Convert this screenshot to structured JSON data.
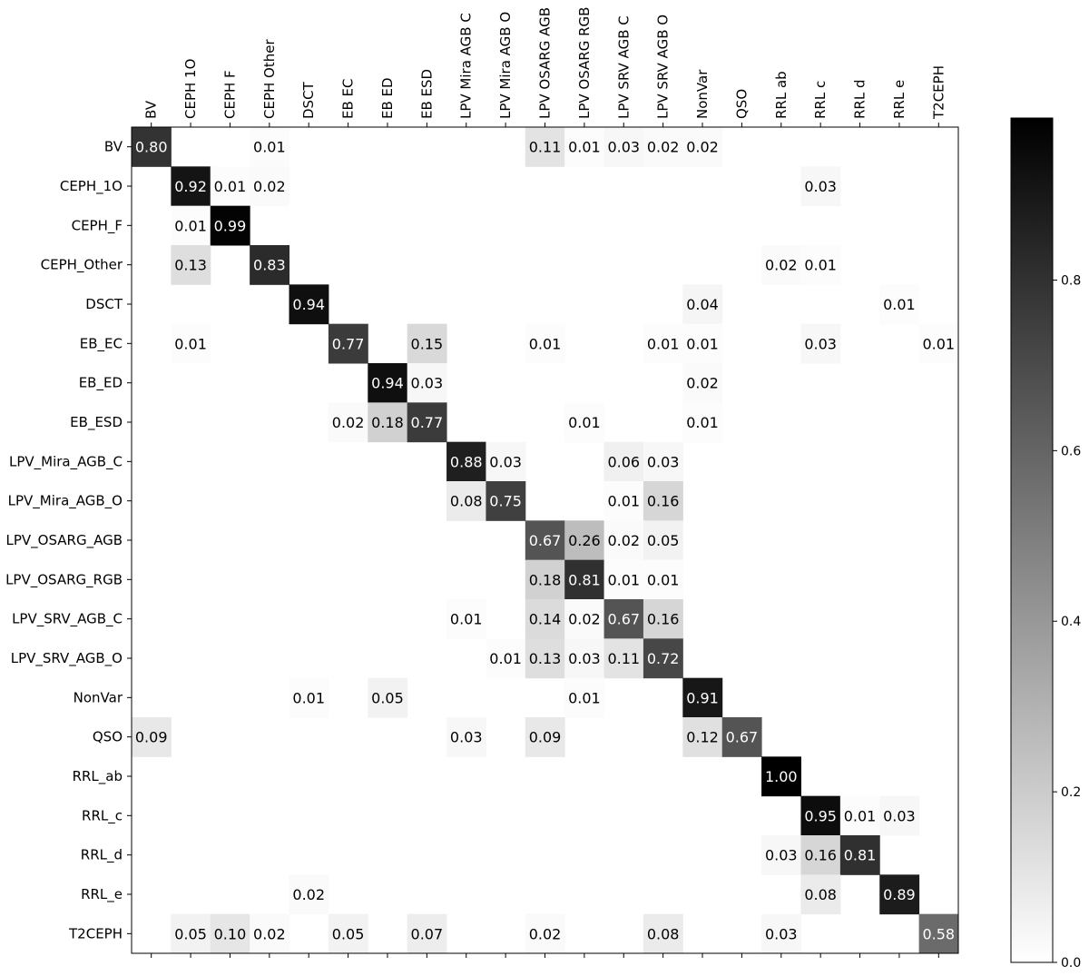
{
  "chart_data": {
    "type": "heatmap",
    "title": "",
    "xlabel": "",
    "ylabel": "",
    "x_categories": [
      "BV",
      "CEPH 1O",
      "CEPH F",
      "CEPH Other",
      "DSCT",
      "EB EC",
      "EB ED",
      "EB ESD",
      "LPV Mira AGB C",
      "LPV Mira AGB O",
      "LPV OSARG AGB",
      "LPV OSARG RGB",
      "LPV SRV AGB C",
      "LPV SRV AGB O",
      "NonVar",
      "QSO",
      "RRL ab",
      "RRL c",
      "RRL d",
      "RRL e",
      "T2CEPH"
    ],
    "y_categories": [
      "BV",
      "CEPH_1O",
      "CEPH_F",
      "CEPH_Other",
      "DSCT",
      "EB_EC",
      "EB_ED",
      "EB_ESD",
      "LPV_Mira_AGB_C",
      "LPV_Mira_AGB_O",
      "LPV_OSARG_AGB",
      "LPV_OSARG_RGB",
      "LPV_SRV_AGB_C",
      "LPV_SRV_AGB_O",
      "NonVar",
      "QSO",
      "RRL_ab",
      "RRL_c",
      "RRL_d",
      "RRL_e",
      "T2CEPH"
    ],
    "cells": [
      {
        "row": 0,
        "col": 0,
        "value": 0.8,
        "label": "0.80"
      },
      {
        "row": 0,
        "col": 3,
        "value": 0.01,
        "label": "0.01"
      },
      {
        "row": 0,
        "col": 10,
        "value": 0.11,
        "label": "0.11"
      },
      {
        "row": 0,
        "col": 11,
        "value": 0.01,
        "label": "0.01"
      },
      {
        "row": 0,
        "col": 12,
        "value": 0.03,
        "label": "0.03"
      },
      {
        "row": 0,
        "col": 13,
        "value": 0.02,
        "label": "0.02"
      },
      {
        "row": 0,
        "col": 14,
        "value": 0.02,
        "label": "0.02"
      },
      {
        "row": 1,
        "col": 1,
        "value": 0.92,
        "label": "0.92"
      },
      {
        "row": 1,
        "col": 2,
        "value": 0.01,
        "label": "0.01"
      },
      {
        "row": 1,
        "col": 3,
        "value": 0.02,
        "label": "0.02"
      },
      {
        "row": 1,
        "col": 17,
        "value": 0.03,
        "label": "0.03"
      },
      {
        "row": 2,
        "col": 1,
        "value": 0.01,
        "label": "0.01"
      },
      {
        "row": 2,
        "col": 2,
        "value": 0.99,
        "label": "0.99"
      },
      {
        "row": 3,
        "col": 1,
        "value": 0.13,
        "label": "0.13"
      },
      {
        "row": 3,
        "col": 3,
        "value": 0.83,
        "label": "0.83"
      },
      {
        "row": 3,
        "col": 16,
        "value": 0.02,
        "label": "0.02"
      },
      {
        "row": 3,
        "col": 17,
        "value": 0.01,
        "label": "0.01"
      },
      {
        "row": 4,
        "col": 4,
        "value": 0.94,
        "label": "0.94"
      },
      {
        "row": 4,
        "col": 14,
        "value": 0.04,
        "label": "0.04"
      },
      {
        "row": 4,
        "col": 19,
        "value": 0.01,
        "label": "0.01"
      },
      {
        "row": 5,
        "col": 1,
        "value": 0.01,
        "label": "0.01"
      },
      {
        "row": 5,
        "col": 5,
        "value": 0.77,
        "label": "0.77"
      },
      {
        "row": 5,
        "col": 7,
        "value": 0.15,
        "label": "0.15"
      },
      {
        "row": 5,
        "col": 10,
        "value": 0.01,
        "label": "0.01"
      },
      {
        "row": 5,
        "col": 13,
        "value": 0.01,
        "label": "0.01"
      },
      {
        "row": 5,
        "col": 14,
        "value": 0.01,
        "label": "0.01"
      },
      {
        "row": 5,
        "col": 17,
        "value": 0.03,
        "label": "0.03"
      },
      {
        "row": 5,
        "col": 20,
        "value": 0.01,
        "label": "0.01"
      },
      {
        "row": 6,
        "col": 6,
        "value": 0.94,
        "label": "0.94"
      },
      {
        "row": 6,
        "col": 7,
        "value": 0.03,
        "label": "0.03"
      },
      {
        "row": 6,
        "col": 14,
        "value": 0.02,
        "label": "0.02"
      },
      {
        "row": 7,
        "col": 5,
        "value": 0.02,
        "label": "0.02"
      },
      {
        "row": 7,
        "col": 6,
        "value": 0.18,
        "label": "0.18"
      },
      {
        "row": 7,
        "col": 7,
        "value": 0.77,
        "label": "0.77"
      },
      {
        "row": 7,
        "col": 11,
        "value": 0.01,
        "label": "0.01"
      },
      {
        "row": 7,
        "col": 14,
        "value": 0.01,
        "label": "0.01"
      },
      {
        "row": 8,
        "col": 8,
        "value": 0.88,
        "label": "0.88"
      },
      {
        "row": 8,
        "col": 9,
        "value": 0.03,
        "label": "0.03"
      },
      {
        "row": 8,
        "col": 12,
        "value": 0.06,
        "label": "0.06"
      },
      {
        "row": 8,
        "col": 13,
        "value": 0.03,
        "label": "0.03"
      },
      {
        "row": 9,
        "col": 8,
        "value": 0.08,
        "label": "0.08"
      },
      {
        "row": 9,
        "col": 9,
        "value": 0.75,
        "label": "0.75"
      },
      {
        "row": 9,
        "col": 12,
        "value": 0.01,
        "label": "0.01"
      },
      {
        "row": 9,
        "col": 13,
        "value": 0.16,
        "label": "0.16"
      },
      {
        "row": 10,
        "col": 10,
        "value": 0.67,
        "label": "0.67"
      },
      {
        "row": 10,
        "col": 11,
        "value": 0.26,
        "label": "0.26"
      },
      {
        "row": 10,
        "col": 12,
        "value": 0.02,
        "label": "0.02"
      },
      {
        "row": 10,
        "col": 13,
        "value": 0.05,
        "label": "0.05"
      },
      {
        "row": 11,
        "col": 10,
        "value": 0.18,
        "label": "0.18"
      },
      {
        "row": 11,
        "col": 11,
        "value": 0.81,
        "label": "0.81"
      },
      {
        "row": 11,
        "col": 12,
        "value": 0.01,
        "label": "0.01"
      },
      {
        "row": 11,
        "col": 13,
        "value": 0.01,
        "label": "0.01"
      },
      {
        "row": 12,
        "col": 8,
        "value": 0.01,
        "label": "0.01"
      },
      {
        "row": 12,
        "col": 10,
        "value": 0.14,
        "label": "0.14"
      },
      {
        "row": 12,
        "col": 11,
        "value": 0.02,
        "label": "0.02"
      },
      {
        "row": 12,
        "col": 12,
        "value": 0.67,
        "label": "0.67"
      },
      {
        "row": 12,
        "col": 13,
        "value": 0.16,
        "label": "0.16"
      },
      {
        "row": 13,
        "col": 9,
        "value": 0.01,
        "label": "0.01"
      },
      {
        "row": 13,
        "col": 10,
        "value": 0.13,
        "label": "0.13"
      },
      {
        "row": 13,
        "col": 11,
        "value": 0.03,
        "label": "0.03"
      },
      {
        "row": 13,
        "col": 12,
        "value": 0.11,
        "label": "0.11"
      },
      {
        "row": 13,
        "col": 13,
        "value": 0.72,
        "label": "0.72"
      },
      {
        "row": 14,
        "col": 4,
        "value": 0.01,
        "label": "0.01"
      },
      {
        "row": 14,
        "col": 6,
        "value": 0.05,
        "label": "0.05"
      },
      {
        "row": 14,
        "col": 11,
        "value": 0.01,
        "label": "0.01"
      },
      {
        "row": 14,
        "col": 14,
        "value": 0.91,
        "label": "0.91"
      },
      {
        "row": 15,
        "col": 0,
        "value": 0.09,
        "label": "0.09"
      },
      {
        "row": 15,
        "col": 8,
        "value": 0.03,
        "label": "0.03"
      },
      {
        "row": 15,
        "col": 10,
        "value": 0.09,
        "label": "0.09"
      },
      {
        "row": 15,
        "col": 14,
        "value": 0.12,
        "label": "0.12"
      },
      {
        "row": 15,
        "col": 15,
        "value": 0.67,
        "label": "0.67"
      },
      {
        "row": 16,
        "col": 16,
        "value": 1.0,
        "label": "1.00"
      },
      {
        "row": 17,
        "col": 17,
        "value": 0.95,
        "label": "0.95"
      },
      {
        "row": 17,
        "col": 18,
        "value": 0.01,
        "label": "0.01"
      },
      {
        "row": 17,
        "col": 19,
        "value": 0.03,
        "label": "0.03"
      },
      {
        "row": 18,
        "col": 16,
        "value": 0.03,
        "label": "0.03"
      },
      {
        "row": 18,
        "col": 17,
        "value": 0.16,
        "label": "0.16"
      },
      {
        "row": 18,
        "col": 18,
        "value": 0.81,
        "label": "0.81"
      },
      {
        "row": 19,
        "col": 4,
        "value": 0.02,
        "label": "0.02"
      },
      {
        "row": 19,
        "col": 17,
        "value": 0.08,
        "label": "0.08"
      },
      {
        "row": 19,
        "col": 19,
        "value": 0.89,
        "label": "0.89"
      },
      {
        "row": 20,
        "col": 1,
        "value": 0.05,
        "label": "0.05"
      },
      {
        "row": 20,
        "col": 2,
        "value": 0.1,
        "label": "0.10"
      },
      {
        "row": 20,
        "col": 3,
        "value": 0.02,
        "label": "0.02"
      },
      {
        "row": 20,
        "col": 5,
        "value": 0.05,
        "label": "0.05"
      },
      {
        "row": 20,
        "col": 7,
        "value": 0.07,
        "label": "0.07"
      },
      {
        "row": 20,
        "col": 10,
        "value": 0.02,
        "label": "0.02"
      },
      {
        "row": 20,
        "col": 13,
        "value": 0.08,
        "label": "0.08"
      },
      {
        "row": 20,
        "col": 16,
        "value": 0.03,
        "label": "0.03"
      },
      {
        "row": 20,
        "col": 20,
        "value": 0.58,
        "label": "0.58"
      }
    ],
    "colormap": "greys",
    "color_range": [
      0,
      1.0
    ],
    "colorbar": {
      "ticks": [
        0.0,
        0.2,
        0.4,
        0.6,
        0.8
      ],
      "tick_labels": [
        "0.0",
        "0.2",
        "0.4",
        "0.6",
        "0.8"
      ],
      "placement": "right"
    },
    "grid": false
  }
}
